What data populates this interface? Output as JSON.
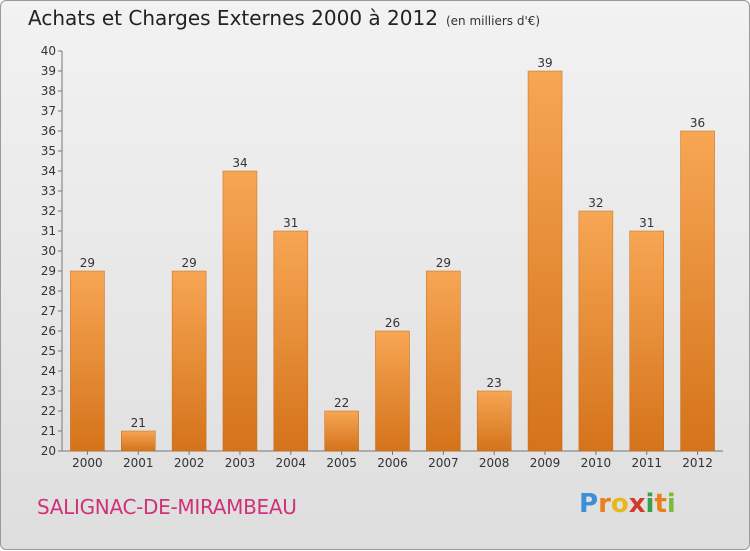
{
  "header": {
    "title": "Achats et Charges Externes 2000 à 2012",
    "subtitle": "(en milliers d'€)"
  },
  "footer": {
    "commune": "SALIGNAC-DE-MIRAMBEAU",
    "brand_letters": [
      "P",
      "r",
      "o",
      "x",
      "i",
      "t",
      "i"
    ],
    "brand_colors": [
      "#3a8fd6",
      "#e8811a",
      "#e8b81a",
      "#d43a2a",
      "#3aa047",
      "#e8811a",
      "#7dbb3a"
    ]
  },
  "chart_data": {
    "type": "bar",
    "title": "Achats et Charges Externes 2000 à 2012",
    "subtitle": "(en milliers d'€)",
    "categories": [
      "2000",
      "2001",
      "2002",
      "2003",
      "2004",
      "2005",
      "2006",
      "2007",
      "2008",
      "2009",
      "2010",
      "2011",
      "2012"
    ],
    "values": [
      29,
      21,
      29,
      34,
      31,
      22,
      26,
      29,
      23,
      39,
      32,
      31,
      36
    ],
    "ylim": [
      20,
      40
    ],
    "yticks": [
      20,
      21,
      22,
      23,
      24,
      25,
      26,
      27,
      28,
      29,
      30,
      31,
      32,
      33,
      34,
      35,
      36,
      37,
      38,
      39,
      40
    ],
    "grid": false,
    "bar_color_top": "#f7a654",
    "bar_color_bottom": "#d4731a"
  }
}
